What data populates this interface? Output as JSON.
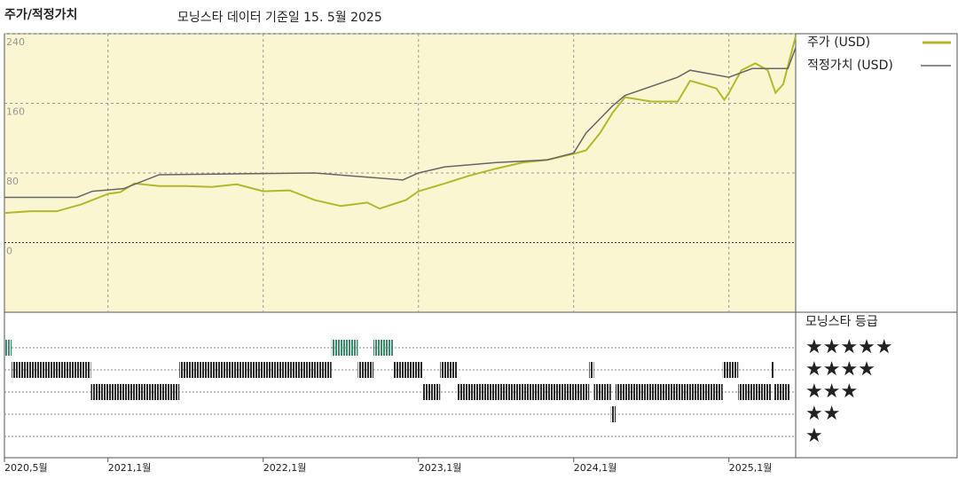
{
  "chart_data": [
    {
      "type": "line",
      "title": "주가/적정가치",
      "subtitle": "모닝스타 데이터 기준일 15. 5월 2025",
      "xlim": [
        2020.333,
        2025.43
      ],
      "xticks": [
        {
          "value": 2020.333,
          "label": "2020,5월"
        },
        {
          "value": 2021.0,
          "label": "2021,1월"
        },
        {
          "value": 2022.0,
          "label": "2022,1월"
        },
        {
          "value": 2023.0,
          "label": "2023,1월"
        },
        {
          "value": 2024.0,
          "label": "2024,1월"
        },
        {
          "value": 2025.0,
          "label": "2025,1월"
        }
      ],
      "ylim": [
        -80,
        240
      ],
      "yticks": [
        0,
        80,
        160,
        240
      ],
      "grid": true,
      "series": [
        {
          "name": "주가 (USD)",
          "color": "#b3b82b",
          "x": [
            2020.333,
            2020.5,
            2020.67,
            2020.83,
            2021.0,
            2021.08,
            2021.17,
            2021.33,
            2021.5,
            2021.67,
            2021.83,
            2022.0,
            2022.17,
            2022.33,
            2022.5,
            2022.67,
            2022.75,
            2022.92,
            2023.0,
            2023.17,
            2023.33,
            2023.5,
            2023.67,
            2023.83,
            2024.0,
            2024.08,
            2024.17,
            2024.25,
            2024.33,
            2024.5,
            2024.67,
            2024.75,
            2024.83,
            2024.92,
            2024.97,
            2025.0,
            2025.08,
            2025.17,
            2025.25,
            2025.3,
            2025.35,
            2025.38,
            2025.43
          ],
          "values": [
            34,
            36,
            36,
            44,
            56,
            58,
            68,
            65,
            65,
            64,
            67,
            59,
            60,
            49,
            42,
            46,
            39,
            49,
            59,
            68,
            77,
            85,
            92,
            95,
            102,
            106,
            126,
            149,
            167,
            162,
            162,
            186,
            182,
            177,
            164,
            172,
            198,
            206,
            198,
            172,
            182,
            203,
            237
          ]
        },
        {
          "name": "적정가치 (USD)",
          "color": "#666666",
          "x": [
            2020.333,
            2020.8,
            2020.9,
            2021.1,
            2021.33,
            2022.33,
            2022.9,
            2023.0,
            2023.17,
            2023.5,
            2023.83,
            2024.0,
            2024.08,
            2024.25,
            2024.33,
            2024.67,
            2024.75,
            2025.0,
            2025.15,
            2025.38,
            2025.43
          ],
          "values": [
            52,
            52,
            59,
            62,
            78,
            80,
            72,
            80,
            87,
            92,
            95,
            103,
            126,
            157,
            169,
            190,
            198,
            190,
            200,
            200,
            224
          ]
        }
      ]
    },
    {
      "type": "rating",
      "title": "모닝스타 등급",
      "color": "#2b2b2b",
      "top_color": "#3d8c6c",
      "levels": [
        {
          "value": 5,
          "label": "★★★★★"
        },
        {
          "value": 4,
          "label": "★★★★"
        },
        {
          "value": 3,
          "label": "★★★"
        },
        {
          "value": 2,
          "label": "★★"
        },
        {
          "value": 1,
          "label": "★"
        }
      ],
      "segments": [
        {
          "start": 2020.333,
          "end": 2020.38,
          "stars": 5
        },
        {
          "start": 2020.38,
          "end": 2020.89,
          "stars": 4
        },
        {
          "start": 2020.89,
          "end": 2021.46,
          "stars": 3
        },
        {
          "start": 2021.46,
          "end": 2022.44,
          "stars": 4
        },
        {
          "start": 2022.44,
          "end": 2022.61,
          "stars": 5
        },
        {
          "start": 2022.61,
          "end": 2022.71,
          "stars": 4
        },
        {
          "start": 2022.71,
          "end": 2022.84,
          "stars": 5
        },
        {
          "start": 2022.84,
          "end": 2023.03,
          "stars": 4
        },
        {
          "start": 2023.03,
          "end": 2023.14,
          "stars": 3
        },
        {
          "start": 2023.14,
          "end": 2023.25,
          "stars": 4
        },
        {
          "start": 2023.25,
          "end": 2024.1,
          "stars": 3
        },
        {
          "start": 2024.1,
          "end": 2024.13,
          "stars": 4
        },
        {
          "start": 2024.13,
          "end": 2024.24,
          "stars": 3
        },
        {
          "start": 2024.24,
          "end": 2024.27,
          "stars": 2
        },
        {
          "start": 2024.27,
          "end": 2024.96,
          "stars": 3
        },
        {
          "start": 2024.96,
          "end": 2025.06,
          "stars": 4
        },
        {
          "start": 2025.06,
          "end": 2025.27,
          "stars": 3
        },
        {
          "start": 2025.27,
          "end": 2025.29,
          "stars": 4
        },
        {
          "start": 2025.29,
          "end": 2025.39,
          "stars": 3
        }
      ]
    }
  ]
}
